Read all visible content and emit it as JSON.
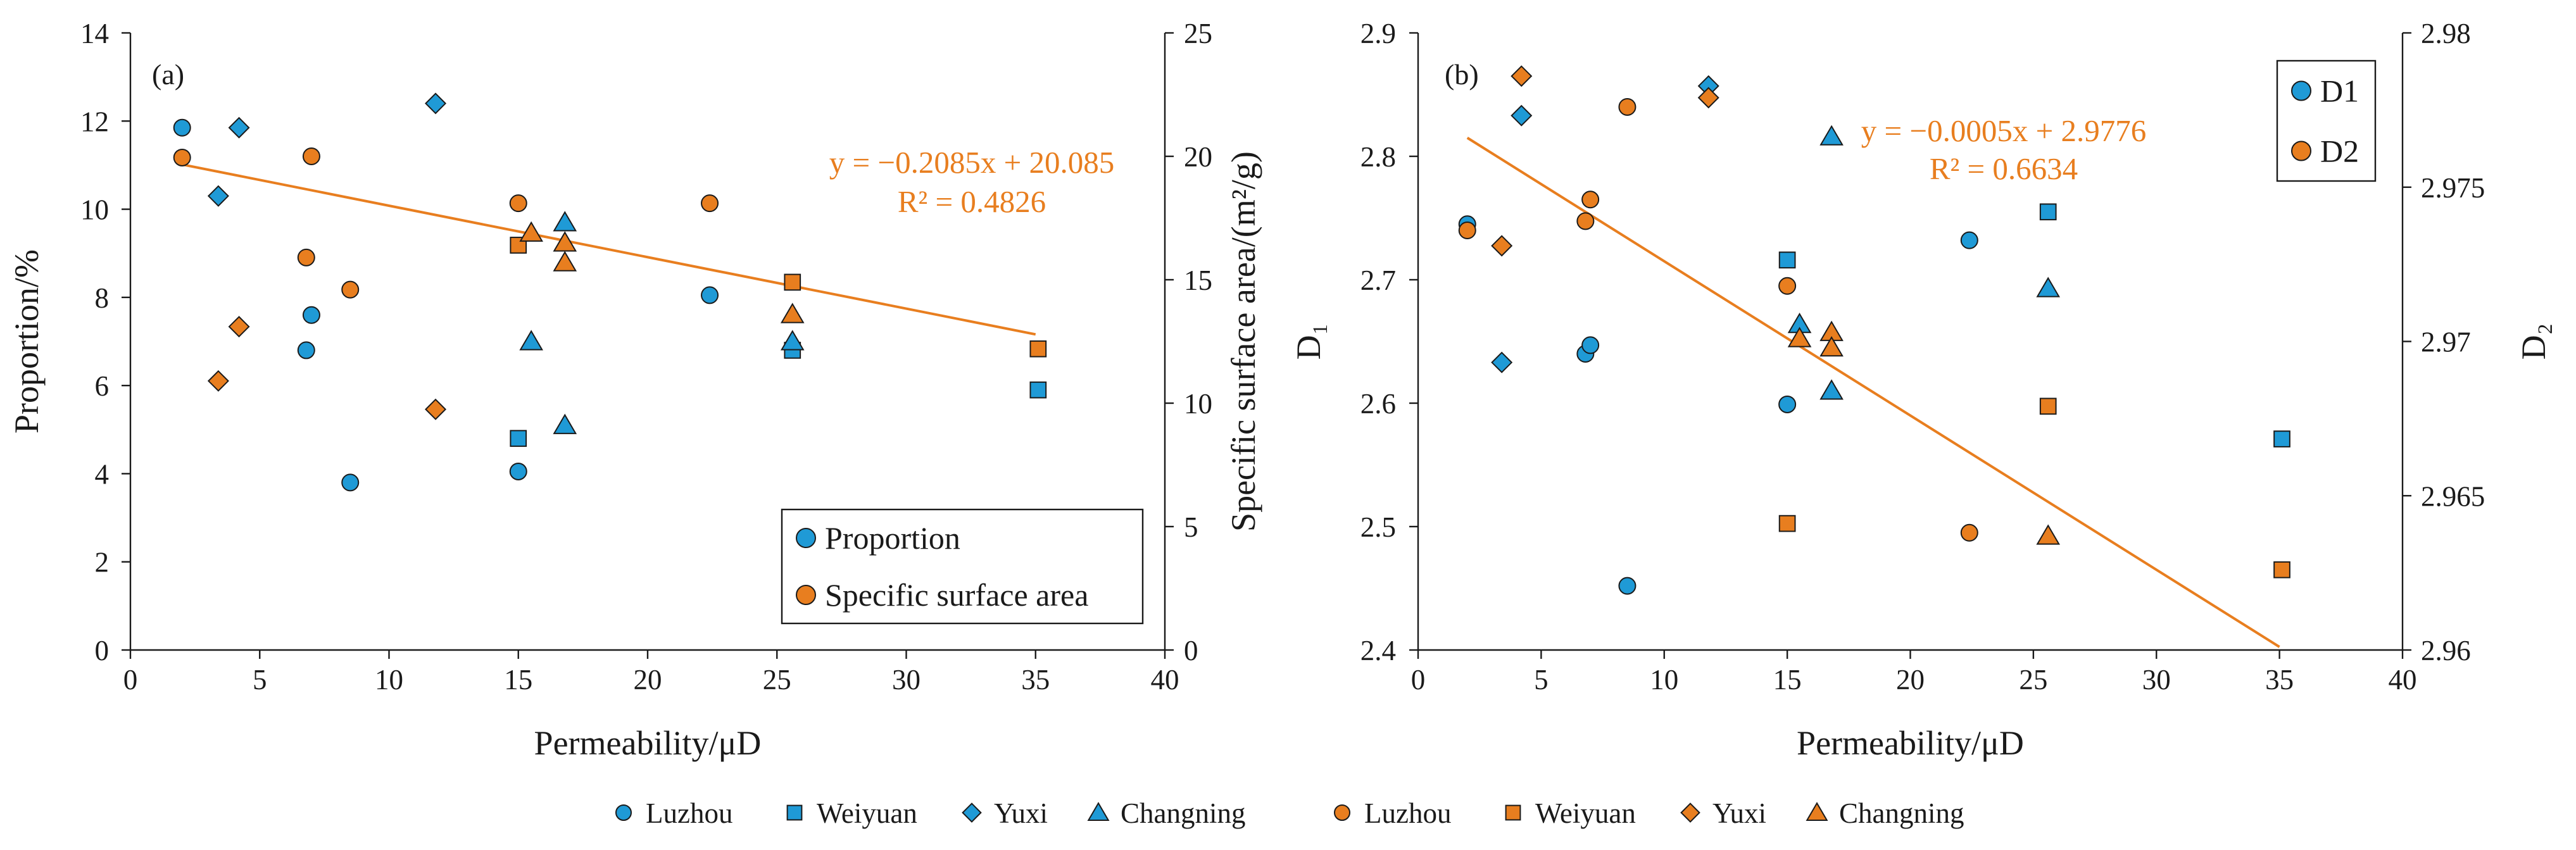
{
  "colors": {
    "blue": "#1f9ad6",
    "orange": "#e87e1f",
    "trend": "#e87e1f"
  },
  "bottom_legend": {
    "left": [
      {
        "label": "Luzhou",
        "shape": "circle",
        "color": "#1f9ad6"
      },
      {
        "label": "Weiyuan",
        "shape": "square",
        "color": "#1f9ad6"
      },
      {
        "label": "Yuxi",
        "shape": "diamond",
        "color": "#1f9ad6"
      },
      {
        "label": "Changning",
        "shape": "triangle",
        "color": "#1f9ad6"
      }
    ],
    "right": [
      {
        "label": "Luzhou",
        "shape": "circle",
        "color": "#e87e1f"
      },
      {
        "label": "Weiyuan",
        "shape": "square",
        "color": "#e87e1f"
      },
      {
        "label": "Yuxi",
        "shape": "diamond",
        "color": "#e87e1f"
      },
      {
        "label": "Changning",
        "shape": "triangle",
        "color": "#e87e1f"
      }
    ]
  },
  "chart_data": [
    {
      "type": "scatter",
      "panel_label": "(a)",
      "xlabel": "Permeability/μD",
      "ylabel_left": "Proportion/%",
      "ylabel_right": "Specific surface area/(m²/g)",
      "xlim": [
        0,
        40
      ],
      "xticks": [
        0,
        5,
        10,
        15,
        20,
        25,
        30,
        35,
        40
      ],
      "ylim_left": [
        0,
        14
      ],
      "yticks_left": [
        0,
        2,
        4,
        6,
        8,
        10,
        12,
        14
      ],
      "ylim_right": [
        0,
        25
      ],
      "yticks_right": [
        0,
        5,
        10,
        15,
        20,
        25
      ],
      "grid": false,
      "legend": {
        "position": "bottom-right",
        "entries": [
          {
            "label": "Proportion",
            "color": "#1f9ad6",
            "shape": "circle"
          },
          {
            "label": "Specific surface area",
            "color": "#e87e1f",
            "shape": "circle"
          }
        ]
      },
      "equation": "y = −0.2085x + 20.085",
      "r2": "R² = 0.4826",
      "trendline": {
        "axis": "right",
        "slope": -0.2085,
        "intercept": 20.085,
        "x_range": [
          2,
          35
        ]
      },
      "series": [
        {
          "name": "Luzhou",
          "axis": "left",
          "color": "#1f9ad6",
          "shape": "circle",
          "points": [
            [
              2,
              11.85
            ],
            [
              6.8,
              6.8
            ],
            [
              7,
              7.6
            ],
            [
              8.5,
              3.8
            ],
            [
              15,
              4.05
            ],
            [
              22.4,
              8.05
            ]
          ]
        },
        {
          "name": "Weiyuan",
          "axis": "left",
          "color": "#1f9ad6",
          "shape": "square",
          "points": [
            [
              15,
              4.8
            ],
            [
              25.6,
              6.8
            ],
            [
              35.1,
              5.9
            ]
          ]
        },
        {
          "name": "Yuxi",
          "axis": "left",
          "color": "#1f9ad6",
          "shape": "diamond",
          "points": [
            [
              3.4,
              10.3
            ],
            [
              4.2,
              11.85
            ],
            [
              11.8,
              12.4
            ]
          ]
        },
        {
          "name": "Changning",
          "axis": "left",
          "color": "#1f9ad6",
          "shape": "triangle",
          "points": [
            [
              15.5,
              7.0
            ],
            [
              16.8,
              9.7
            ],
            [
              16.8,
              5.1
            ],
            [
              25.6,
              7.0
            ]
          ]
        },
        {
          "name": "Luzhou",
          "axis": "right",
          "color": "#e87e1f",
          "shape": "circle",
          "points": [
            [
              2,
              19.95
            ],
            [
              6.8,
              15.9
            ],
            [
              7,
              20.0
            ],
            [
              8.5,
              14.6
            ],
            [
              15,
              18.1
            ],
            [
              22.4,
              18.1
            ]
          ]
        },
        {
          "name": "Weiyuan",
          "axis": "right",
          "color": "#e87e1f",
          "shape": "square",
          "points": [
            [
              15,
              16.4
            ],
            [
              25.6,
              14.9
            ],
            [
              35.1,
              12.2
            ]
          ]
        },
        {
          "name": "Yuxi",
          "axis": "right",
          "color": "#e87e1f",
          "shape": "diamond",
          "points": [
            [
              3.4,
              10.9
            ],
            [
              4.2,
              13.1
            ],
            [
              11.8,
              9.75
            ]
          ]
        },
        {
          "name": "Changning",
          "axis": "right",
          "color": "#e87e1f",
          "shape": "triangle",
          "points": [
            [
              15.5,
              16.9
            ],
            [
              16.8,
              16.5
            ],
            [
              16.8,
              15.7
            ],
            [
              25.6,
              13.6
            ]
          ]
        }
      ]
    },
    {
      "type": "scatter",
      "panel_label": "(b)",
      "xlabel": "Permeability/μD",
      "ylabel_left": "D₁",
      "ylabel_right": "D₂",
      "xlim": [
        0,
        40
      ],
      "xticks": [
        0,
        5,
        10,
        15,
        20,
        25,
        30,
        35,
        40
      ],
      "ylim_left": [
        2.4,
        2.9
      ],
      "yticks_left": [
        2.4,
        2.5,
        2.6,
        2.7,
        2.8,
        2.9
      ],
      "ytick_labels_left": [
        "2.4",
        "2.5",
        "2.6",
        "2.7",
        "2.8",
        "2.9"
      ],
      "ylim_right": [
        2.96,
        2.98
      ],
      "yticks_right": [
        2.96,
        2.965,
        2.97,
        2.975,
        2.98
      ],
      "ytick_labels_right": [
        "2.96",
        "2.965",
        "2.97",
        "2.975",
        "2.98"
      ],
      "grid": false,
      "legend": {
        "position": "top-right",
        "entries": [
          {
            "label": "D1",
            "color": "#1f9ad6",
            "shape": "circle"
          },
          {
            "label": "D2",
            "color": "#e87e1f",
            "shape": "circle"
          }
        ]
      },
      "equation": "y = −0.0005x + 2.9776",
      "r2": "R² = 0.6634",
      "trendline": {
        "axis": "right",
        "slope": -0.0005,
        "intercept": 2.9776,
        "x_range": [
          2,
          35
        ]
      },
      "series": [
        {
          "name": "Luzhou",
          "axis": "left",
          "color": "#1f9ad6",
          "shape": "circle",
          "points": [
            [
              2,
              2.745
            ],
            [
              6.8,
              2.64
            ],
            [
              7,
              2.647
            ],
            [
              8.5,
              2.452
            ],
            [
              15,
              2.599
            ],
            [
              22.4,
              2.732
            ]
          ]
        },
        {
          "name": "Weiyuan",
          "axis": "left",
          "color": "#1f9ad6",
          "shape": "square",
          "points": [
            [
              15,
              2.716
            ],
            [
              25.6,
              2.755
            ],
            [
              35.1,
              2.571
            ]
          ]
        },
        {
          "name": "Yuxi",
          "axis": "left",
          "color": "#1f9ad6",
          "shape": "diamond",
          "points": [
            [
              3.4,
              2.633
            ],
            [
              4.2,
              2.833
            ],
            [
              11.8,
              2.857
            ]
          ]
        },
        {
          "name": "Changning",
          "axis": "left",
          "color": "#1f9ad6",
          "shape": "triangle",
          "points": [
            [
              15.5,
              2.664
            ],
            [
              16.8,
              2.816
            ],
            [
              16.8,
              2.61
            ],
            [
              25.6,
              2.693
            ]
          ]
        },
        {
          "name": "Luzhou",
          "axis": "right",
          "color": "#e87e1f",
          "shape": "circle",
          "points": [
            [
              2,
              2.9736
            ],
            [
              6.8,
              2.9739
            ],
            [
              7,
              2.9746
            ],
            [
              8.5,
              2.9776
            ],
            [
              15,
              2.9718
            ],
            [
              22.4,
              2.9638
            ]
          ]
        },
        {
          "name": "Weiyuan",
          "axis": "right",
          "color": "#e87e1f",
          "shape": "square",
          "points": [
            [
              15,
              2.9641
            ],
            [
              25.6,
              2.9679
            ],
            [
              35.1,
              2.9626
            ]
          ]
        },
        {
          "name": "Yuxi",
          "axis": "right",
          "color": "#e87e1f",
          "shape": "diamond",
          "points": [
            [
              3.4,
              2.9731
            ],
            [
              4.2,
              2.9786
            ],
            [
              11.8,
              2.9779
            ]
          ]
        },
        {
          "name": "Changning",
          "axis": "right",
          "color": "#e87e1f",
          "shape": "triangle",
          "points": [
            [
              15.5,
              2.9701
            ],
            [
              16.8,
              2.9703
            ],
            [
              16.8,
              2.9698
            ],
            [
              25.6,
              2.9637
            ]
          ]
        }
      ]
    }
  ]
}
